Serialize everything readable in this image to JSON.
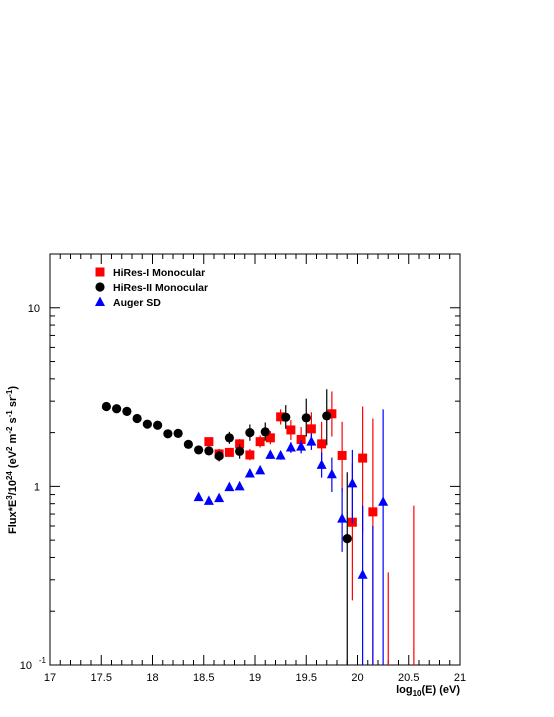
{
  "chart_data": {
    "type": "scatter",
    "title": "",
    "xlabel": "log10(E) (eV)",
    "ylabel": "Flux*E^3/10^24 (eV^2 m^-2 s^-1 sr^-1)",
    "xlim": [
      17,
      21
    ],
    "ylim": [
      0.1,
      20
    ],
    "y_scale": "log",
    "x_tick_labels": [
      "17",
      "17.5",
      "18",
      "18.5",
      "19",
      "19.5",
      "20",
      "20.5",
      "21"
    ],
    "y_tick_labels": [
      "10",
      "1",
      "10"
    ],
    "y_tick_superscripts": [
      "",
      "",
      "-1"
    ],
    "legend_position": "top-left",
    "series": [
      {
        "name": "HiRes-I Monocular",
        "color": "#ff0000",
        "marker": "square",
        "points": [
          {
            "x": 18.55,
            "y": 1.78,
            "lo": 1.7,
            "hi": 1.86
          },
          {
            "x": 18.65,
            "y": 1.52,
            "lo": 1.44,
            "hi": 1.62
          },
          {
            "x": 18.75,
            "y": 1.55,
            "lo": 1.47,
            "hi": 1.64
          },
          {
            "x": 18.85,
            "y": 1.73,
            "lo": 1.63,
            "hi": 1.84
          },
          {
            "x": 18.95,
            "y": 1.5,
            "lo": 1.4,
            "hi": 1.62
          },
          {
            "x": 19.05,
            "y": 1.78,
            "lo": 1.65,
            "hi": 1.93
          },
          {
            "x": 19.15,
            "y": 1.87,
            "lo": 1.72,
            "hi": 2.04
          },
          {
            "x": 19.25,
            "y": 2.45,
            "lo": 2.22,
            "hi": 2.7
          },
          {
            "x": 19.35,
            "y": 2.07,
            "lo": 1.82,
            "hi": 2.35
          },
          {
            "x": 19.45,
            "y": 1.83,
            "lo": 1.55,
            "hi": 2.15
          },
          {
            "x": 19.55,
            "y": 2.1,
            "lo": 1.72,
            "hi": 2.6
          },
          {
            "x": 19.65,
            "y": 1.73,
            "lo": 1.32,
            "hi": 2.3
          },
          {
            "x": 19.75,
            "y": 2.55,
            "lo": 1.9,
            "hi": 3.4
          },
          {
            "x": 19.85,
            "y": 1.49,
            "lo": 0.93,
            "hi": 2.3
          },
          {
            "x": 19.95,
            "y": 0.63,
            "lo": 0.23,
            "hi": 1.35
          },
          {
            "x": 20.05,
            "y": 1.44,
            "lo": 0.55,
            "hi": 2.8
          },
          {
            "x": 20.15,
            "y": 0.72,
            "lo": 0.1,
            "hi": 2.4
          },
          {
            "x": 20.3,
            "y": null,
            "lo": 0.1,
            "hi": 0.33
          },
          {
            "x": 20.55,
            "y": null,
            "lo": 0.1,
            "hi": 0.78
          }
        ]
      },
      {
        "name": "HiRes-II Monocular",
        "color": "#000000",
        "marker": "circle",
        "points": [
          {
            "x": 17.55,
            "y": 2.8,
            "lo": 2.75,
            "hi": 2.85
          },
          {
            "x": 17.65,
            "y": 2.72,
            "lo": 2.67,
            "hi": 2.77
          },
          {
            "x": 17.75,
            "y": 2.63,
            "lo": 2.58,
            "hi": 2.68
          },
          {
            "x": 17.85,
            "y": 2.4,
            "lo": 2.35,
            "hi": 2.45
          },
          {
            "x": 17.95,
            "y": 2.23,
            "lo": 2.18,
            "hi": 2.28
          },
          {
            "x": 18.05,
            "y": 2.2,
            "lo": 2.15,
            "hi": 2.25
          },
          {
            "x": 18.15,
            "y": 1.97,
            "lo": 1.92,
            "hi": 2.02
          },
          {
            "x": 18.25,
            "y": 1.98,
            "lo": 1.93,
            "hi": 2.03
          },
          {
            "x": 18.35,
            "y": 1.72,
            "lo": 1.67,
            "hi": 1.77
          },
          {
            "x": 18.45,
            "y": 1.6,
            "lo": 1.54,
            "hi": 1.66
          },
          {
            "x": 18.55,
            "y": 1.58,
            "lo": 1.5,
            "hi": 1.66
          },
          {
            "x": 18.65,
            "y": 1.48,
            "lo": 1.38,
            "hi": 1.58
          },
          {
            "x": 18.75,
            "y": 1.87,
            "lo": 1.73,
            "hi": 2.02
          },
          {
            "x": 18.85,
            "y": 1.57,
            "lo": 1.43,
            "hi": 1.72
          },
          {
            "x": 18.95,
            "y": 2.0,
            "lo": 1.8,
            "hi": 2.22
          },
          {
            "x": 19.1,
            "y": 2.02,
            "lo": 1.8,
            "hi": 2.28
          },
          {
            "x": 19.3,
            "y": 2.44,
            "lo": 2.1,
            "hi": 2.85
          },
          {
            "x": 19.5,
            "y": 2.42,
            "lo": 1.9,
            "hi": 3.1
          },
          {
            "x": 19.7,
            "y": 2.48,
            "lo": 1.7,
            "hi": 3.5
          },
          {
            "x": 19.9,
            "y": 0.51,
            "lo": 0.1,
            "hi": 1.2
          }
        ]
      },
      {
        "name": "Auger SD",
        "color": "#0000ff",
        "marker": "triangle",
        "points": [
          {
            "x": 18.45,
            "y": 0.87,
            "lo": 0.85,
            "hi": 0.89
          },
          {
            "x": 18.55,
            "y": 0.83,
            "lo": 0.81,
            "hi": 0.85
          },
          {
            "x": 18.65,
            "y": 0.86,
            "lo": 0.84,
            "hi": 0.88
          },
          {
            "x": 18.75,
            "y": 0.99,
            "lo": 0.96,
            "hi": 1.02
          },
          {
            "x": 18.85,
            "y": 1.0,
            "lo": 0.97,
            "hi": 1.03
          },
          {
            "x": 18.95,
            "y": 1.18,
            "lo": 1.14,
            "hi": 1.22
          },
          {
            "x": 19.05,
            "y": 1.23,
            "lo": 1.18,
            "hi": 1.28
          },
          {
            "x": 19.15,
            "y": 1.5,
            "lo": 1.43,
            "hi": 1.57
          },
          {
            "x": 19.25,
            "y": 1.49,
            "lo": 1.41,
            "hi": 1.58
          },
          {
            "x": 19.35,
            "y": 1.65,
            "lo": 1.54,
            "hi": 1.77
          },
          {
            "x": 19.45,
            "y": 1.67,
            "lo": 1.53,
            "hi": 1.82
          },
          {
            "x": 19.55,
            "y": 1.78,
            "lo": 1.6,
            "hi": 1.98
          },
          {
            "x": 19.65,
            "y": 1.32,
            "lo": 1.12,
            "hi": 1.55
          },
          {
            "x": 19.75,
            "y": 1.17,
            "lo": 0.93,
            "hi": 1.45
          },
          {
            "x": 19.85,
            "y": 0.66,
            "lo": 0.43,
            "hi": 0.98
          },
          {
            "x": 19.95,
            "y": 1.04,
            "lo": 0.62,
            "hi": 1.6
          },
          {
            "x": 20.05,
            "y": 0.32,
            "lo": 0.1,
            "hi": 0.78
          },
          {
            "x": 20.15,
            "y": null,
            "lo": 0.1,
            "hi": 0.6
          },
          {
            "x": 20.25,
            "y": 0.82,
            "lo": 0.1,
            "hi": 2.7
          }
        ]
      }
    ]
  }
}
